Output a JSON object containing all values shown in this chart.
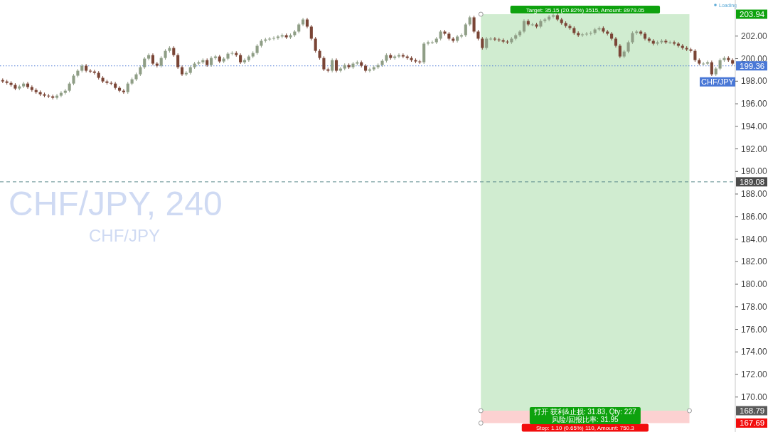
{
  "chart_data": {
    "type": "candlestick",
    "title": "CHF/JPY, 240",
    "subtitle": "CHF/JPY",
    "annotations": [
      "Loading",
      "打开 获利&止损: 31.83, Qty: 227",
      "风险/回报比率: 31.95"
    ],
    "categories": [
      null,
      null,
      null,
      null,
      null,
      null,
      null,
      null,
      null,
      null,
      null,
      null,
      null,
      null,
      null,
      null,
      null,
      null,
      null,
      null,
      null,
      null,
      null,
      null,
      null,
      null,
      null,
      null,
      null,
      null,
      null,
      null,
      null,
      null,
      null,
      null,
      null,
      null,
      null,
      null,
      null,
      null,
      null,
      null,
      null,
      null,
      null,
      null,
      null,
      null,
      null,
      null,
      null,
      null,
      null,
      null,
      null,
      null,
      null,
      null,
      null,
      null,
      null,
      null,
      null,
      null,
      null,
      null,
      null,
      null,
      null,
      null,
      null,
      null,
      null,
      null,
      null,
      null,
      null,
      null,
      null,
      null,
      null,
      null,
      null,
      null,
      null,
      null,
      null,
      null,
      null,
      null,
      null,
      null,
      null,
      null,
      null,
      null,
      null,
      null,
      null,
      null,
      null,
      null,
      null,
      null,
      null,
      null,
      null,
      null,
      null,
      null,
      null,
      null,
      null,
      null,
      null,
      null,
      null,
      null,
      null,
      null,
      null,
      null,
      null,
      null,
      null,
      null,
      null,
      null,
      null,
      null,
      null,
      null,
      null,
      null,
      null,
      null,
      null,
      null,
      null,
      null,
      null,
      null,
      null,
      null,
      null,
      null,
      null,
      null,
      null,
      null,
      null,
      null,
      null,
      null,
      null,
      null,
      null,
      null,
      null,
      null,
      null,
      null,
      null,
      null,
      null,
      null,
      null,
      null,
      null,
      null,
      null,
      null,
      null,
      null
    ],
    "ohlc": [
      [
        198.1,
        198.25,
        197.83,
        197.98
      ],
      [
        197.98,
        198.13,
        197.7,
        197.85
      ],
      [
        197.85,
        198.0,
        197.52,
        197.67
      ],
      [
        197.67,
        197.82,
        197.2,
        197.35
      ],
      [
        197.35,
        197.69,
        197.2,
        197.54
      ],
      [
        197.54,
        197.94,
        197.39,
        197.79
      ],
      [
        197.79,
        197.94,
        197.33,
        197.48
      ],
      [
        197.48,
        197.63,
        197.07,
        197.22
      ],
      [
        197.22,
        197.37,
        196.88,
        197.03
      ],
      [
        197.03,
        197.18,
        196.69,
        196.84
      ],
      [
        196.84,
        196.99,
        196.57,
        196.72
      ],
      [
        196.72,
        196.87,
        196.51,
        196.66
      ],
      [
        196.66,
        196.81,
        196.38,
        196.53
      ],
      [
        196.53,
        196.87,
        196.38,
        196.72
      ],
      [
        196.72,
        197.12,
        196.57,
        196.97
      ],
      [
        196.97,
        197.31,
        196.82,
        197.16
      ],
      [
        197.16,
        197.94,
        197.01,
        197.79
      ],
      [
        197.79,
        198.64,
        197.64,
        198.49
      ],
      [
        198.49,
        199.08,
        198.34,
        198.93
      ],
      [
        198.93,
        199.52,
        198.78,
        199.37
      ],
      [
        199.37,
        199.52,
        198.78,
        198.93
      ],
      [
        198.93,
        199.08,
        198.71,
        198.86
      ],
      [
        198.86,
        199.01,
        198.59,
        198.74
      ],
      [
        198.74,
        198.89,
        198.15,
        198.3
      ],
      [
        198.3,
        198.45,
        197.83,
        197.98
      ],
      [
        197.98,
        198.13,
        197.7,
        197.85
      ],
      [
        197.85,
        198.0,
        197.64,
        197.79
      ],
      [
        197.79,
        197.94,
        197.26,
        197.41
      ],
      [
        197.41,
        197.56,
        197.01,
        197.16
      ],
      [
        197.16,
        197.31,
        196.88,
        197.03
      ],
      [
        197.03,
        197.94,
        196.88,
        197.79
      ],
      [
        197.79,
        198.32,
        197.64,
        198.17
      ],
      [
        198.17,
        198.76,
        198.02,
        198.61
      ],
      [
        198.61,
        199.39,
        198.46,
        199.24
      ],
      [
        199.24,
        200.15,
        199.09,
        200.0
      ],
      [
        200.0,
        200.47,
        199.85,
        200.32
      ],
      [
        200.32,
        200.47,
        199.41,
        199.56
      ],
      [
        199.56,
        199.71,
        199.22,
        199.37
      ],
      [
        199.37,
        200.21,
        199.22,
        200.06
      ],
      [
        200.06,
        200.84,
        199.91,
        200.69
      ],
      [
        200.69,
        201.1,
        200.54,
        200.95
      ],
      [
        200.95,
        201.1,
        200.17,
        200.32
      ],
      [
        200.32,
        200.47,
        199.09,
        199.24
      ],
      [
        199.24,
        199.39,
        198.46,
        198.61
      ],
      [
        198.61,
        198.89,
        198.46,
        198.74
      ],
      [
        198.74,
        199.39,
        198.59,
        199.24
      ],
      [
        199.24,
        199.71,
        199.09,
        199.56
      ],
      [
        199.56,
        199.83,
        199.41,
        199.68
      ],
      [
        199.68,
        200.02,
        199.53,
        199.87
      ],
      [
        199.87,
        200.02,
        199.28,
        199.43
      ],
      [
        199.43,
        200.21,
        199.28,
        200.06
      ],
      [
        200.06,
        200.34,
        199.91,
        200.19
      ],
      [
        200.19,
        200.34,
        199.6,
        199.75
      ],
      [
        199.75,
        200.15,
        199.6,
        200.0
      ],
      [
        200.0,
        200.59,
        199.85,
        200.44
      ],
      [
        200.44,
        200.65,
        200.29,
        200.5
      ],
      [
        200.5,
        200.65,
        200.17,
        200.32
      ],
      [
        200.32,
        200.47,
        199.53,
        199.68
      ],
      [
        199.68,
        200.02,
        199.53,
        199.87
      ],
      [
        199.87,
        200.34,
        199.72,
        200.19
      ],
      [
        200.19,
        200.65,
        200.04,
        200.5
      ],
      [
        200.5,
        201.29,
        200.35,
        201.14
      ],
      [
        201.14,
        201.73,
        200.99,
        201.58
      ],
      [
        201.58,
        201.85,
        201.43,
        201.7
      ],
      [
        201.7,
        201.92,
        201.55,
        201.77
      ],
      [
        201.77,
        201.98,
        201.62,
        201.83
      ],
      [
        201.83,
        202.11,
        201.68,
        201.96
      ],
      [
        201.96,
        202.23,
        201.81,
        202.08
      ],
      [
        202.08,
        202.23,
        201.74,
        201.89
      ],
      [
        201.89,
        202.23,
        201.74,
        202.08
      ],
      [
        202.08,
        202.55,
        201.93,
        202.4
      ],
      [
        202.4,
        203.18,
        202.25,
        203.03
      ],
      [
        203.03,
        203.62,
        202.88,
        203.47
      ],
      [
        203.47,
        203.62,
        202.69,
        202.84
      ],
      [
        202.84,
        202.99,
        201.62,
        201.77
      ],
      [
        201.77,
        201.92,
        200.54,
        200.69
      ],
      [
        200.69,
        200.84,
        199.91,
        200.06
      ],
      [
        200.06,
        200.21,
        198.9,
        199.05
      ],
      [
        199.05,
        199.2,
        198.78,
        198.93
      ],
      [
        198.93,
        200.02,
        198.78,
        199.87
      ],
      [
        199.87,
        200.02,
        198.78,
        198.93
      ],
      [
        198.93,
        199.27,
        198.78,
        199.12
      ],
      [
        199.12,
        199.58,
        198.97,
        199.43
      ],
      [
        199.43,
        199.58,
        199.09,
        199.24
      ],
      [
        199.24,
        199.71,
        199.09,
        199.56
      ],
      [
        199.56,
        199.83,
        199.41,
        199.68
      ],
      [
        199.68,
        199.83,
        199.22,
        199.37
      ],
      [
        199.37,
        199.52,
        198.78,
        198.93
      ],
      [
        198.93,
        199.2,
        198.78,
        199.05
      ],
      [
        199.05,
        199.39,
        198.9,
        199.24
      ],
      [
        199.24,
        199.58,
        199.09,
        199.43
      ],
      [
        199.43,
        199.96,
        199.28,
        199.81
      ],
      [
        199.81,
        200.47,
        199.66,
        200.32
      ],
      [
        200.32,
        200.47,
        199.91,
        200.06
      ],
      [
        200.06,
        200.34,
        199.91,
        200.19
      ],
      [
        200.19,
        200.47,
        200.04,
        200.32
      ],
      [
        200.32,
        200.47,
        200.04,
        200.19
      ],
      [
        200.19,
        200.34,
        199.91,
        200.06
      ],
      [
        200.06,
        200.21,
        199.72,
        199.87
      ],
      [
        199.87,
        200.02,
        199.6,
        199.75
      ],
      [
        199.75,
        199.9,
        199.53,
        199.68
      ],
      [
        199.68,
        201.48,
        199.53,
        201.33
      ],
      [
        201.33,
        201.6,
        201.18,
        201.45
      ],
      [
        201.45,
        201.6,
        201.3,
        201.45
      ],
      [
        201.45,
        201.92,
        201.3,
        201.77
      ],
      [
        201.77,
        202.55,
        201.62,
        202.4
      ],
      [
        202.4,
        202.55,
        202.06,
        202.21
      ],
      [
        202.21,
        202.36,
        201.62,
        201.77
      ],
      [
        201.77,
        201.92,
        201.43,
        201.58
      ],
      [
        201.58,
        202.11,
        201.43,
        201.96
      ],
      [
        201.96,
        202.23,
        201.81,
        202.08
      ],
      [
        202.08,
        203.18,
        201.93,
        203.03
      ],
      [
        203.03,
        203.81,
        202.88,
        203.66
      ],
      [
        203.66,
        203.81,
        202.25,
        202.4
      ],
      [
        202.4,
        202.55,
        201.62,
        201.77
      ],
      [
        201.77,
        201.92,
        200.8,
        200.95
      ],
      [
        200.95,
        201.92,
        200.8,
        201.77
      ],
      [
        201.77,
        201.92,
        201.62,
        201.77
      ],
      [
        201.77,
        201.92,
        201.55,
        201.7
      ],
      [
        201.7,
        201.85,
        201.49,
        201.64
      ],
      [
        201.64,
        201.79,
        201.36,
        201.51
      ],
      [
        201.51,
        201.66,
        201.3,
        201.45
      ],
      [
        201.45,
        201.92,
        201.3,
        201.77
      ],
      [
        201.77,
        202.23,
        201.62,
        202.08
      ],
      [
        202.08,
        202.55,
        201.93,
        202.4
      ],
      [
        202.4,
        203.49,
        202.25,
        203.34
      ],
      [
        203.34,
        203.49,
        202.88,
        203.03
      ],
      [
        203.03,
        203.18,
        202.88,
        203.03
      ],
      [
        203.03,
        203.18,
        202.69,
        202.84
      ],
      [
        202.84,
        203.49,
        202.69,
        203.34
      ],
      [
        203.34,
        203.62,
        203.19,
        203.47
      ],
      [
        203.47,
        203.87,
        203.32,
        203.72
      ],
      [
        203.72,
        204.0,
        203.57,
        203.85
      ],
      [
        203.85,
        204.0,
        203.32,
        203.47
      ],
      [
        203.47,
        203.62,
        203.01,
        203.16
      ],
      [
        203.16,
        203.31,
        202.75,
        202.9
      ],
      [
        202.9,
        203.05,
        202.56,
        202.71
      ],
      [
        202.71,
        202.86,
        202.12,
        202.27
      ],
      [
        202.27,
        202.42,
        201.93,
        202.08
      ],
      [
        202.08,
        202.3,
        201.93,
        202.15
      ],
      [
        202.15,
        202.36,
        202.0,
        202.21
      ],
      [
        202.21,
        202.42,
        202.06,
        202.27
      ],
      [
        202.27,
        202.74,
        202.12,
        202.59
      ],
      [
        202.59,
        202.86,
        202.44,
        202.71
      ],
      [
        202.71,
        202.86,
        202.25,
        202.4
      ],
      [
        202.4,
        202.55,
        202.06,
        202.21
      ],
      [
        202.21,
        202.36,
        201.62,
        201.77
      ],
      [
        201.77,
        201.92,
        200.99,
        201.14
      ],
      [
        201.14,
        201.29,
        200.04,
        200.19
      ],
      [
        200.19,
        200.78,
        200.04,
        200.63
      ],
      [
        200.63,
        201.6,
        200.48,
        201.45
      ],
      [
        201.45,
        202.42,
        201.3,
        202.27
      ],
      [
        202.27,
        202.55,
        202.12,
        202.4
      ],
      [
        202.4,
        202.55,
        202.06,
        202.21
      ],
      [
        202.21,
        202.36,
        201.62,
        201.77
      ],
      [
        201.77,
        201.92,
        201.43,
        201.58
      ],
      [
        201.58,
        201.73,
        201.18,
        201.33
      ],
      [
        201.33,
        201.6,
        201.18,
        201.45
      ],
      [
        201.45,
        201.73,
        201.3,
        201.58
      ],
      [
        201.58,
        201.73,
        201.3,
        201.45
      ],
      [
        201.45,
        201.6,
        201.3,
        201.45
      ],
      [
        201.45,
        201.6,
        201.18,
        201.33
      ],
      [
        201.33,
        201.48,
        200.99,
        201.14
      ],
      [
        201.14,
        201.29,
        200.8,
        200.95
      ],
      [
        200.95,
        201.1,
        200.67,
        200.82
      ],
      [
        200.82,
        200.97,
        200.54,
        200.69
      ],
      [
        200.69,
        200.84,
        199.72,
        199.87
      ],
      [
        199.87,
        200.02,
        199.41,
        199.56
      ],
      [
        199.56,
        199.71,
        199.41,
        199.56
      ],
      [
        199.56,
        199.83,
        199.41,
        199.68
      ],
      [
        199.68,
        199.83,
        198.46,
        198.61
      ],
      [
        198.61,
        199.27,
        198.46,
        199.12
      ],
      [
        199.12,
        200.02,
        198.97,
        199.87
      ],
      [
        199.87,
        200.21,
        199.72,
        200.06
      ],
      [
        200.06,
        200.21,
        199.72,
        199.87
      ],
      [
        199.87,
        200.02,
        199.41,
        199.56
      ]
    ],
    "ylim": [
      166.9,
      205.2
    ],
    "yticks": [
      {
        "value": 170,
        "label": "170.00"
      },
      {
        "value": 172,
        "label": "172.00"
      },
      {
        "value": 174,
        "label": "174.00"
      },
      {
        "value": 176,
        "label": "176.00"
      },
      {
        "value": 178,
        "label": "178.00"
      },
      {
        "value": 180,
        "label": "180.00"
      },
      {
        "value": 182,
        "label": "182.00"
      },
      {
        "value": 184,
        "label": "184.00"
      },
      {
        "value": 186,
        "label": "186.00"
      },
      {
        "value": 188,
        "label": "188.00"
      },
      {
        "value": 190,
        "label": "190.00"
      },
      {
        "value": 192,
        "label": "192.00"
      },
      {
        "value": 194,
        "label": "194.00"
      },
      {
        "value": 196,
        "label": "196.00"
      },
      {
        "value": 198,
        "label": "198.00"
      },
      {
        "value": 200,
        "label": "200.00"
      },
      {
        "value": 202,
        "label": "202.00"
      },
      {
        "value": 203.94,
        "label": "203.94"
      },
      {
        "value": 199.36,
        "label": "199.36"
      },
      {
        "value": 189.08,
        "label": "189.08"
      },
      {
        "value": 168.79,
        "label": "168.79"
      },
      {
        "value": 167.69,
        "label": "167.69"
      }
    ],
    "tick_labels": "y",
    "ref_lines": [
      {
        "axis": "y",
        "value": 199.36,
        "label": "CHF/JPY",
        "color": "#4a78d6",
        "line_style": "dotted"
      },
      {
        "axis": "y",
        "value": 189.08,
        "color": "#5b8a8c",
        "line_style": "dashed"
      }
    ],
    "bands": [
      {
        "axis": "y",
        "from": 168.79,
        "to": 203.94,
        "label": "Target: 35.15 (20.82%) 3515, Amount: 8979.05",
        "color": "#cdebcd"
      },
      {
        "axis": "y",
        "from": 167.69,
        "to": 168.79,
        "label": "Stop: 1.10 (0.65%) 110, Amount: 750.3",
        "color": "#fccfcf"
      }
    ]
  }
}
